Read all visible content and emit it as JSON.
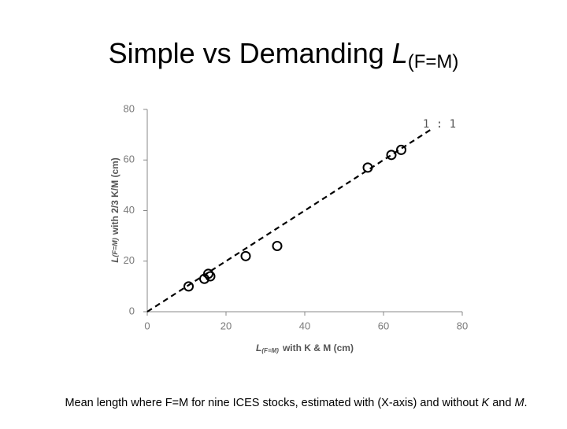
{
  "chart_data": {
    "type": "scatter",
    "title": {
      "text": "Simple vs Demanding",
      "symbol": "L",
      "subscript": "(F=M)"
    },
    "x_label": {
      "symbol": "L",
      "subscript": "(F=M)",
      "text": "with K & M (cm)"
    },
    "y_label": {
      "symbol": "L",
      "subscript": "(F=M)",
      "text": "with 2/3 K/M (cm)"
    },
    "x": [
      10.5,
      14.5,
      15.5,
      16,
      25,
      33,
      56,
      62,
      64.5
    ],
    "y": [
      10,
      13,
      15,
      14,
      22,
      26,
      57,
      62,
      64
    ],
    "color": "#000000",
    "xlim": [
      0,
      80
    ],
    "ylim": [
      0,
      80
    ],
    "xticks": [
      0,
      20,
      40,
      60,
      80
    ],
    "yticks": [
      0,
      20,
      40,
      60,
      80
    ],
    "grid": false,
    "reference_line": {
      "label": "1 : 1",
      "x": [
        0,
        72
      ],
      "y": [
        0,
        72
      ]
    },
    "caption": [
      {
        "text": "Mean length where F=M for nine ICES stocks, estimated with (X-axis) and without "
      },
      {
        "text": "K",
        "italic": true
      },
      {
        "text": " and "
      },
      {
        "text": "M",
        "italic": true
      },
      {
        "text": "."
      }
    ]
  }
}
